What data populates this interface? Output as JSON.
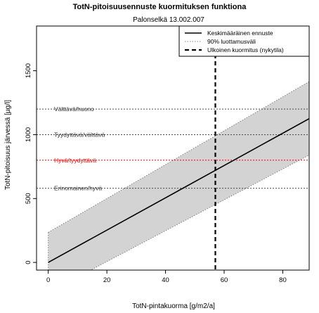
{
  "chart_data": {
    "type": "line",
    "title": "TotN-pitoisuusennuste kuormituksen funktiona",
    "subtitle": "Palonselkä 13.002.007",
    "xlabel": "TotN-pintakuorma [g/m2/a]",
    "ylabel": "TotN-pitoisuus järvessä [µg/l]",
    "xlim": [
      -4,
      89
    ],
    "ylim": [
      -60,
      1850
    ],
    "x_ticks": [
      0,
      20,
      40,
      60,
      80
    ],
    "y_ticks": [
      0,
      500,
      1000,
      1500
    ],
    "series": [
      {
        "name": "Keskimääräinen ennuste",
        "style": "solid",
        "color": "#000000",
        "x": [
          0,
          89
        ],
        "y": [
          0,
          1125
        ]
      },
      {
        "name": "90% luottamusväli",
        "style": "dotted-band",
        "color": "#808080",
        "fill": "#d3d3d3",
        "x": [
          0,
          89
        ],
        "upper": [
          235,
          1415
        ],
        "lower": [
          -235,
          840
        ]
      }
    ],
    "vertical_line": {
      "name": "Ulkoinen kuormitus (nykytila)",
      "x": 57,
      "style": "dashed",
      "color": "#000000"
    },
    "reference_lines": [
      {
        "label": "Välttävä/huono",
        "y": 1200,
        "color": "#333333"
      },
      {
        "label": "Tyydyttävä/välttävä",
        "y": 1000,
        "color": "#333333"
      },
      {
        "label": "Hyvä/tyydyttävä",
        "y": 800,
        "color": "#ff0000"
      },
      {
        "label": "Erinomainen/hyvä",
        "y": 580,
        "color": "#333333"
      }
    ],
    "legend_position": "top-right"
  }
}
